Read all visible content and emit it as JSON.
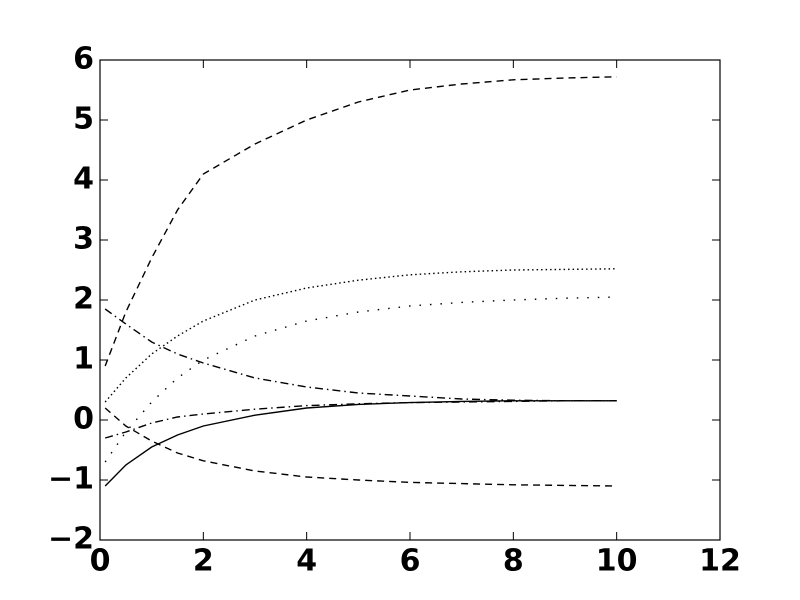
{
  "chart_data": {
    "type": "line",
    "x": [
      0.1,
      0.5,
      1,
      1.5,
      2,
      3,
      4,
      5,
      6,
      7,
      8,
      9,
      10
    ],
    "series": [
      {
        "color": "#000000",
        "dash": "dashed",
        "values": [
          0.9,
          1.8,
          2.7,
          3.5,
          4.1,
          4.6,
          5.0,
          5.3,
          5.5,
          5.6,
          5.67,
          5.7,
          5.72
        ]
      },
      {
        "color": "#000000",
        "dash": "dotted",
        "values": [
          0.3,
          0.7,
          1.1,
          1.4,
          1.65,
          2.0,
          2.2,
          2.33,
          2.42,
          2.47,
          2.5,
          2.51,
          2.52
        ]
      },
      {
        "color": "#000000",
        "dash": "sparse-dotted",
        "values": [
          -0.7,
          -0.2,
          0.3,
          0.7,
          1.0,
          1.4,
          1.65,
          1.8,
          1.9,
          1.96,
          2.0,
          2.03,
          2.05
        ]
      },
      {
        "color": "#000000",
        "dash": "dashdot",
        "values": [
          1.85,
          1.6,
          1.3,
          1.1,
          0.95,
          0.7,
          0.55,
          0.45,
          0.4,
          0.35,
          0.33,
          0.32,
          0.32
        ]
      },
      {
        "color": "#000000",
        "dash": "dashdot",
        "values": [
          -0.3,
          -0.2,
          -0.05,
          0.05,
          0.1,
          0.18,
          0.24,
          0.27,
          0.29,
          0.3,
          0.31,
          0.32,
          0.32
        ]
      },
      {
        "color": "#000000",
        "dash": "solid",
        "values": [
          -1.1,
          -0.75,
          -0.45,
          -0.25,
          -0.1,
          0.08,
          0.2,
          0.26,
          0.29,
          0.31,
          0.32,
          0.32,
          0.32
        ]
      },
      {
        "color": "#000000",
        "dash": "dashed",
        "values": [
          0.2,
          -0.1,
          -0.35,
          -0.55,
          -0.68,
          -0.85,
          -0.95,
          -1.0,
          -1.04,
          -1.06,
          -1.08,
          -1.09,
          -1.1
        ]
      }
    ],
    "xlim": [
      0,
      12
    ],
    "xticks": [
      0,
      2,
      4,
      6,
      8,
      10,
      12
    ],
    "ylim": [
      -2,
      6
    ],
    "yticks": [
      {
        "value": -2,
        "label": "−2"
      },
      {
        "value": -1,
        "label": "−1"
      },
      0,
      1,
      2,
      3,
      4,
      5,
      6
    ],
    "grid": false
  }
}
